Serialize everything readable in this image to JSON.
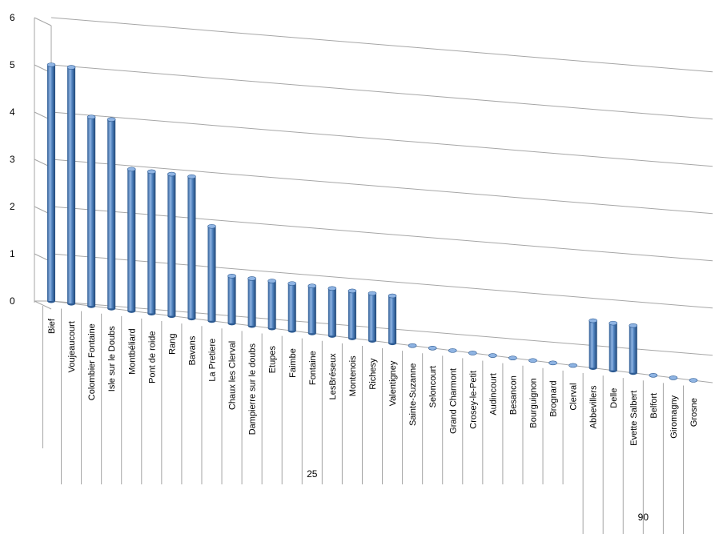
{
  "chart_data": {
    "type": "bar",
    "title": "",
    "xlabel": "",
    "ylabel": "",
    "ylim": [
      0,
      6
    ],
    "yticks": [
      0,
      1,
      2,
      3,
      4,
      5,
      6
    ],
    "grid": true,
    "colors": {
      "bar": "#4f81bd",
      "bar_dark": "#2c5a92",
      "bar_light": "#8fb4e3",
      "grid": "#a6a6a6"
    },
    "categories": [
      "Bief",
      "Voujeaucourt",
      "Colombier Fontaine",
      "Isle sur le Doubs",
      "Montbéliard",
      "Pont de roide",
      "Rang",
      "Bavans",
      "La Pretiere",
      "Chaux les Clerval",
      "Dampierre sur le doubs",
      "Etupes",
      "Faimbe",
      "Fontaine",
      "LesBréseux",
      "Montenois",
      "Richesy",
      "Valentigney",
      "Sainte-Suzanne",
      "Seloncourt",
      "Grand Charmont",
      "Crosey-le-Petit",
      "Audincourt",
      "Besancon",
      "Bourguignon",
      "Brognard",
      "Clerval",
      "Abbevillers",
      "Delle",
      "Evette Salbert",
      "Belfort",
      "Giromagny",
      "Grosne"
    ],
    "values": [
      5,
      5,
      4,
      4,
      3,
      3,
      3,
      3,
      2,
      1,
      1,
      1,
      1,
      1,
      1,
      1,
      1,
      1,
      0,
      0,
      0,
      0,
      0,
      0,
      0,
      0,
      0,
      1,
      1,
      1,
      0,
      0,
      0
    ],
    "groups": [
      {
        "label": "25",
        "start": 0,
        "end": 26
      },
      {
        "label": "90",
        "start": 27,
        "end": 32
      }
    ]
  }
}
